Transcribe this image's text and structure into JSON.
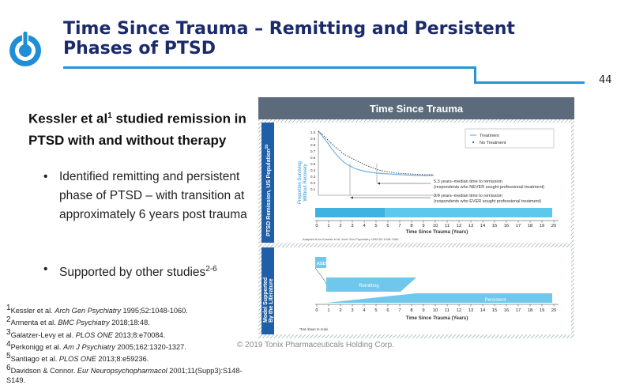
{
  "slide": {
    "title_line1": "Time Since Trauma – Remitting and Persistent",
    "title_line2": "Phases of PTSD",
    "page_number": "44",
    "lead": "Kessler et al",
    "lead_sup": "1",
    "lead_rest": " studied remission in PTSD with and without therapy",
    "bullet1": "Identified remitting and persistent phase of PTSD – with transition at approximately 6 years post trauma",
    "bullet2": "Supported by other studies",
    "bullet2_sup": "2-6",
    "copyright": "© 2019 Tonix Pharmaceuticals Holding Corp.",
    "colors": {
      "title": "#1b2a6b",
      "accent": "#2a93d5",
      "figure_header": "#5b6b7b"
    }
  },
  "references": [
    {
      "num": "1",
      "authors": "Kessler et al. ",
      "journal": "Arch Gen Psychiatry",
      "rest": " 1995;52:1048-1060."
    },
    {
      "num": "2",
      "authors": "Armenta et al. ",
      "journal": "BMC Psychiatry",
      "rest": " 2018;18:48."
    },
    {
      "num": "3",
      "authors": "Galatzer-Levy et al. ",
      "journal": "PLOS ONE",
      "rest": " 2013;8:e70084."
    },
    {
      "num": "4",
      "authors": "Perkonigg et al. ",
      "journal": "Am J Psychiatry",
      "rest": " 2005;162:1320-1327."
    },
    {
      "num": "5",
      "authors": "Santiago et al. ",
      "journal": "PLOS ONE",
      "rest": " 2013;8:e59236."
    },
    {
      "num": "6",
      "authors": "Davidson & Connor. ",
      "journal": "Eur Neuropsychopharmacol",
      "rest": " 2001;11(Supp3):S148-S149."
    }
  ],
  "figure": {
    "header": "Time Since Trauma",
    "side_top": "PTSD Remission, US Population",
    "side_top_sup": "1b",
    "side_bottom_1": "Model Supported",
    "side_bottom_2": "By the Literature",
    "y_axis_1": "Proportion Surviving",
    "y_axis_2": "Without Recovery",
    "legend_treatment": "Treatment",
    "legend_no_treatment": "No Treatment",
    "note1_line1": "5.3 years–median time to remission",
    "note1_line2": "(respondents who NEVER sought professional treatment)",
    "note2_line1": "3.0 years–median time to remission",
    "note2_line2": "(respondents who EVER sought professional treatment)",
    "x_label": "Time Since Trauma (Years)",
    "x_label_2": "Time Since Trauma (Years)",
    "source": "Adapted from Kessler et al. Arch Gen Psychiatry 1995;52:1048-1060.",
    "asd": "ASD",
    "asd_sup": "a",
    "remitting": "Remitting",
    "persistent": "Persistent",
    "footnote": "Not drawn to scale",
    "footnote_sup": "a",
    "y_ticks": [
      "1.0",
      "0.9",
      "0.8",
      "0.7",
      "0.6",
      "0.5",
      "0.4",
      "0.3",
      "0.2",
      "0.1"
    ],
    "x_ticks": [
      "0",
      "1",
      "2",
      "3",
      "4",
      "5",
      "6",
      "7",
      "8",
      "9",
      "10",
      "11",
      "12",
      "13",
      "14",
      "15",
      "16",
      "17",
      "18",
      "19",
      "20"
    ],
    "x_ticks_2": [
      "0",
      "1",
      "2",
      "3",
      "4",
      "5",
      "6",
      "7",
      "8",
      "9",
      "10",
      "11",
      "12",
      "13",
      "14",
      "15",
      "16",
      "17",
      "18",
      "19",
      "20"
    ]
  }
}
